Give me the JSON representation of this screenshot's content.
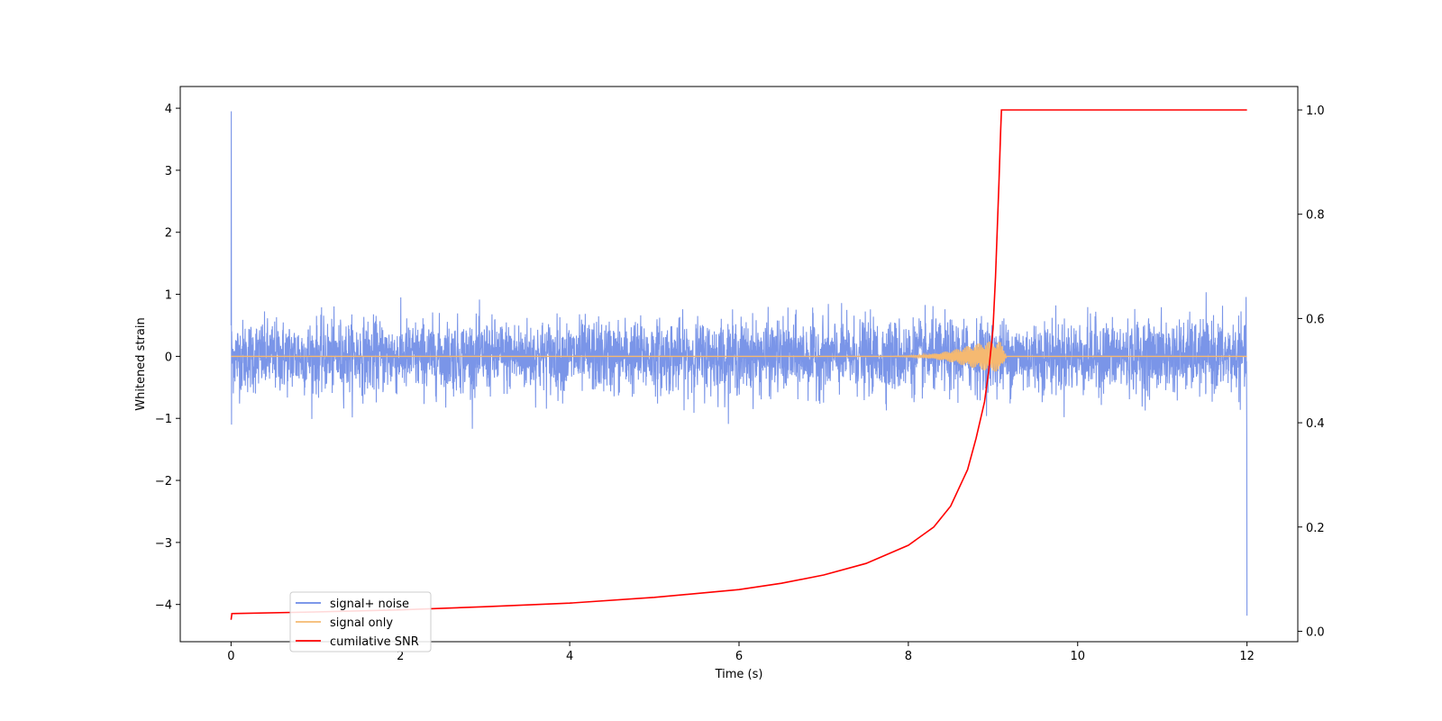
{
  "chart_data": {
    "type": "line",
    "xlabel": "Time (s)",
    "ylabel": "Whitened strain",
    "y2label": "",
    "xlim": [
      -0.6,
      12.6
    ],
    "ylim": [
      -4.6,
      4.35
    ],
    "y2lim": [
      -0.02,
      1.045
    ],
    "xticks": [
      0,
      2,
      4,
      6,
      8,
      10,
      12
    ],
    "yticks": [
      -4,
      -3,
      -2,
      -1,
      0,
      1,
      2,
      3,
      4
    ],
    "y2ticks": [
      0.0,
      0.2,
      0.4,
      0.6,
      0.8,
      1.0
    ],
    "xtick_labels": [
      "0",
      "2",
      "4",
      "6",
      "8",
      "10",
      "12"
    ],
    "ytick_labels": [
      "−4",
      "−3",
      "−2",
      "−1",
      "0",
      "1",
      "2",
      "3",
      "4"
    ],
    "y2tick_labels": [
      "0.0",
      "0.2",
      "0.4",
      "0.6",
      "0.8",
      "1.0"
    ],
    "grid": false,
    "legend_position": "lower-left",
    "series": [
      {
        "name": "signal+ noise",
        "color": "#6b8ae6",
        "axis": "left",
        "description_values": {
          "x_range": [
            0,
            12
          ],
          "noise_band": [
            -0.75,
            0.75
          ],
          "typical_max": 1.25,
          "typical_min": -1.35,
          "start_spike": 3.95,
          "end_spike": -4.18
        }
      },
      {
        "name": "signal only",
        "color": "#f5b971",
        "axis": "left",
        "description_values": {
          "x_range": [
            0,
            12
          ],
          "baseline": 0,
          "peak_time": 9.08,
          "peak_amplitude": 0.25
        }
      },
      {
        "name": "cumilative SNR",
        "color": "#ff0000",
        "axis": "right",
        "x": [
          0,
          0.01,
          1,
          2,
          3,
          4,
          5,
          6,
          6.5,
          7,
          7.5,
          8,
          8.3,
          8.5,
          8.7,
          8.8,
          8.9,
          8.95,
          9.0,
          9.03,
          9.05,
          9.07,
          9.09,
          9.1,
          10,
          11,
          12
        ],
        "values": [
          0.022,
          0.034,
          0.037,
          0.041,
          0.047,
          0.054,
          0.065,
          0.08,
          0.092,
          0.108,
          0.13,
          0.165,
          0.2,
          0.24,
          0.31,
          0.37,
          0.44,
          0.5,
          0.58,
          0.68,
          0.77,
          0.86,
          0.96,
          1.0,
          1.0,
          1.0,
          1.0
        ]
      }
    ]
  }
}
